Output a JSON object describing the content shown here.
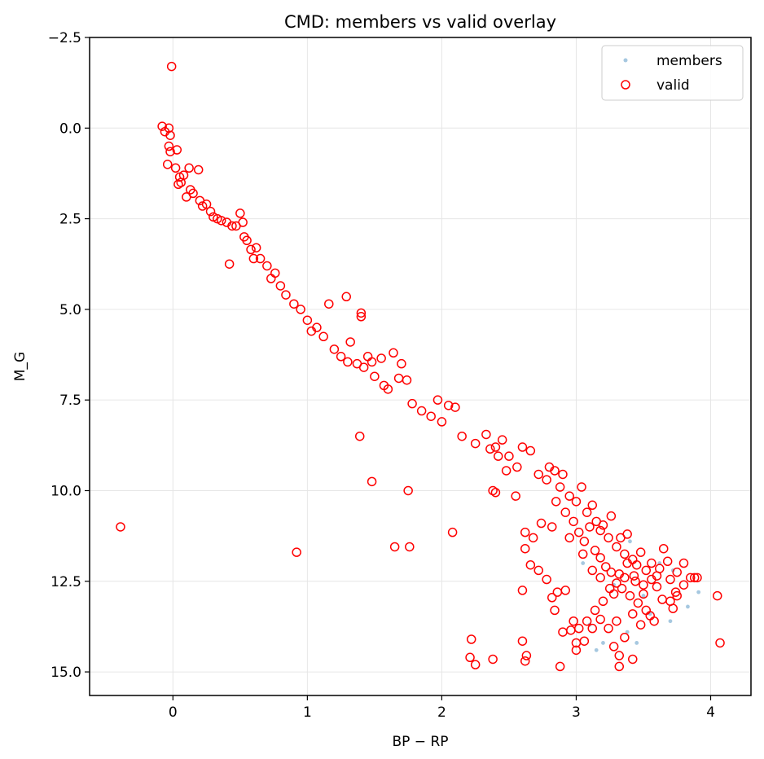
{
  "chart_data": {
    "type": "scatter",
    "title": "CMD: members vs valid overlay",
    "xlabel": "BP − RP",
    "ylabel": "M_G",
    "xlim": [
      -0.62,
      4.3
    ],
    "ylim": [
      15.65,
      -2.5
    ],
    "y_inverted": true,
    "grid": true,
    "legend_position": "upper-right",
    "xticks": [
      0,
      1,
      2,
      3,
      4
    ],
    "xtick_labels": [
      "0",
      "1",
      "2",
      "3",
      "4"
    ],
    "yticks": [
      -2.5,
      0.0,
      2.5,
      5.0,
      7.5,
      10.0,
      12.5,
      15.0
    ],
    "ytick_labels": [
      "−2.5",
      "0.0",
      "2.5",
      "5.0",
      "7.5",
      "10.0",
      "12.5",
      "15.0"
    ],
    "series": [
      {
        "name": "members",
        "color": "#a6c8e0",
        "marker": "small-filled-circle",
        "points": [
          [
            3.1,
            13.7
          ],
          [
            3.15,
            14.4
          ],
          [
            3.2,
            14.2
          ],
          [
            3.38,
            13.9
          ],
          [
            3.45,
            14.2
          ],
          [
            3.55,
            13.4
          ],
          [
            3.7,
            13.6
          ],
          [
            3.83,
            13.2
          ],
          [
            3.91,
            12.8
          ],
          [
            3.62,
            12.0
          ],
          [
            3.5,
            12.9
          ],
          [
            3.28,
            12.6
          ],
          [
            3.4,
            11.4
          ],
          [
            3.05,
            12.0
          ],
          [
            3.72,
            12.2
          ]
        ]
      },
      {
        "name": "valid",
        "color": "#ff0000",
        "marker": "open-circle",
        "points": [
          [
            -0.01,
            -1.7
          ],
          [
            -0.03,
            0.5
          ],
          [
            -0.08,
            -0.05
          ],
          [
            -0.06,
            0.1
          ],
          [
            -0.03,
            0.0
          ],
          [
            -0.02,
            0.2
          ],
          [
            -0.04,
            1.0
          ],
          [
            -0.02,
            0.65
          ],
          [
            0.02,
            1.1
          ],
          [
            0.03,
            0.6
          ],
          [
            0.05,
            1.35
          ],
          [
            0.04,
            1.55
          ],
          [
            0.06,
            1.5
          ],
          [
            0.08,
            1.3
          ],
          [
            0.1,
            1.9
          ],
          [
            0.12,
            1.1
          ],
          [
            0.13,
            1.7
          ],
          [
            0.15,
            1.8
          ],
          [
            0.19,
            1.15
          ],
          [
            0.2,
            2.0
          ],
          [
            0.22,
            2.15
          ],
          [
            0.25,
            2.1
          ],
          [
            0.28,
            2.3
          ],
          [
            0.3,
            2.45
          ],
          [
            0.33,
            2.5
          ],
          [
            0.36,
            2.55
          ],
          [
            0.4,
            2.6
          ],
          [
            0.42,
            3.75
          ],
          [
            0.44,
            2.7
          ],
          [
            0.47,
            2.7
          ],
          [
            0.5,
            2.35
          ],
          [
            0.52,
            2.6
          ],
          [
            0.53,
            3.0
          ],
          [
            0.55,
            3.1
          ],
          [
            0.58,
            3.35
          ],
          [
            0.62,
            3.3
          ],
          [
            0.6,
            3.6
          ],
          [
            0.65,
            3.6
          ],
          [
            0.7,
            3.8
          ],
          [
            0.73,
            4.15
          ],
          [
            0.76,
            4.0
          ],
          [
            0.8,
            4.35
          ],
          [
            0.84,
            4.6
          ],
          [
            0.9,
            4.85
          ],
          [
            0.95,
            5.0
          ],
          [
            1.0,
            5.3
          ],
          [
            1.03,
            5.6
          ],
          [
            1.07,
            5.5
          ],
          [
            1.12,
            5.75
          ],
          [
            1.16,
            4.85
          ],
          [
            1.2,
            6.1
          ],
          [
            1.25,
            6.3
          ],
          [
            1.29,
            4.65
          ],
          [
            1.3,
            6.45
          ],
          [
            1.37,
            6.5
          ],
          [
            1.32,
            5.9
          ],
          [
            1.4,
            5.1
          ],
          [
            1.4,
            5.2
          ],
          [
            1.42,
            6.6
          ],
          [
            1.45,
            6.3
          ],
          [
            1.48,
            6.45
          ],
          [
            1.5,
            6.85
          ],
          [
            1.55,
            6.35
          ],
          [
            1.57,
            7.1
          ],
          [
            1.6,
            7.2
          ],
          [
            1.64,
            6.2
          ],
          [
            1.68,
            6.9
          ],
          [
            1.7,
            6.5
          ],
          [
            1.74,
            6.95
          ],
          [
            1.78,
            7.6
          ],
          [
            1.85,
            7.8
          ],
          [
            1.92,
            7.95
          ],
          [
            1.97,
            7.5
          ],
          [
            2.0,
            8.1
          ],
          [
            2.05,
            7.65
          ],
          [
            2.1,
            7.7
          ],
          [
            2.15,
            8.5
          ],
          [
            2.25,
            8.7
          ],
          [
            2.33,
            8.45
          ],
          [
            2.4,
            8.8
          ],
          [
            2.45,
            8.6
          ],
          [
            2.5,
            9.05
          ],
          [
            2.56,
            9.35
          ],
          [
            2.6,
            8.8
          ],
          [
            2.66,
            8.9
          ],
          [
            2.72,
            9.55
          ],
          [
            2.78,
            9.7
          ],
          [
            2.84,
            9.45
          ],
          [
            2.88,
            9.9
          ],
          [
            2.9,
            9.55
          ],
          [
            2.95,
            10.15
          ],
          [
            3.0,
            10.3
          ],
          [
            3.04,
            9.9
          ],
          [
            3.08,
            10.6
          ],
          [
            3.12,
            10.4
          ],
          [
            3.15,
            10.85
          ],
          [
            3.18,
            11.1
          ],
          [
            3.2,
            10.95
          ],
          [
            3.24,
            11.3
          ],
          [
            3.26,
            10.7
          ],
          [
            3.3,
            11.55
          ],
          [
            3.33,
            11.3
          ],
          [
            3.36,
            11.75
          ],
          [
            3.38,
            11.2
          ],
          [
            3.42,
            11.9
          ],
          [
            3.45,
            12.05
          ],
          [
            3.48,
            11.7
          ],
          [
            3.52,
            12.2
          ],
          [
            3.56,
            12.0
          ],
          [
            3.6,
            12.35
          ],
          [
            3.65,
            11.6
          ],
          [
            3.7,
            12.45
          ],
          [
            3.75,
            12.25
          ],
          [
            3.8,
            12.0
          ],
          [
            3.85,
            12.4
          ],
          [
            3.88,
            12.4
          ],
          [
            2.8,
            9.35
          ],
          [
            2.85,
            10.3
          ],
          [
            2.92,
            10.6
          ],
          [
            2.98,
            10.85
          ],
          [
            3.02,
            11.15
          ],
          [
            3.06,
            11.4
          ],
          [
            3.1,
            11.0
          ],
          [
            3.14,
            11.65
          ],
          [
            3.18,
            11.85
          ],
          [
            3.22,
            12.1
          ],
          [
            3.26,
            12.25
          ],
          [
            3.3,
            12.55
          ],
          [
            3.34,
            12.7
          ],
          [
            3.4,
            12.9
          ],
          [
            3.46,
            13.1
          ],
          [
            3.52,
            13.3
          ],
          [
            3.58,
            13.6
          ],
          [
            3.64,
            13.0
          ],
          [
            3.7,
            13.05
          ],
          [
            3.75,
            12.9
          ],
          [
            3.6,
            12.65
          ],
          [
            3.5,
            12.6
          ],
          [
            3.43,
            12.35
          ],
          [
            3.36,
            12.4
          ],
          [
            3.28,
            12.85
          ],
          [
            3.2,
            13.05
          ],
          [
            3.14,
            13.3
          ],
          [
            3.08,
            13.6
          ],
          [
            3.02,
            13.8
          ],
          [
            2.96,
            13.85
          ],
          [
            2.9,
            13.9
          ],
          [
            2.84,
            13.3
          ],
          [
            2.78,
            12.45
          ],
          [
            2.72,
            12.2
          ],
          [
            2.66,
            12.05
          ],
          [
            2.62,
            11.15
          ],
          [
            2.55,
            10.15
          ],
          [
            2.4,
            10.05
          ],
          [
            2.42,
            9.05
          ],
          [
            2.48,
            9.45
          ],
          [
            2.36,
            8.85
          ],
          [
            2.62,
            11.6
          ],
          [
            2.68,
            11.3
          ],
          [
            2.74,
            10.9
          ],
          [
            2.82,
            11.0
          ],
          [
            2.95,
            11.3
          ],
          [
            3.05,
            11.75
          ],
          [
            3.12,
            12.2
          ],
          [
            3.18,
            12.4
          ],
          [
            3.25,
            12.7
          ],
          [
            3.32,
            12.3
          ],
          [
            3.38,
            12.0
          ],
          [
            3.44,
            12.5
          ],
          [
            3.5,
            12.85
          ],
          [
            3.56,
            12.45
          ],
          [
            3.62,
            12.15
          ],
          [
            3.68,
            11.95
          ],
          [
            3.74,
            12.8
          ],
          [
            3.8,
            12.6
          ],
          [
            3.9,
            12.4
          ],
          [
            4.05,
            12.9
          ],
          [
            4.07,
            14.2
          ],
          [
            3.72,
            13.25
          ],
          [
            3.55,
            13.45
          ],
          [
            3.48,
            13.7
          ],
          [
            3.42,
            13.4
          ],
          [
            3.36,
            14.05
          ],
          [
            3.3,
            13.6
          ],
          [
            3.24,
            13.8
          ],
          [
            3.18,
            13.55
          ],
          [
            3.12,
            13.8
          ],
          [
            3.06,
            14.15
          ],
          [
            3.0,
            14.2
          ],
          [
            2.98,
            13.6
          ],
          [
            2.92,
            12.75
          ],
          [
            2.86,
            12.8
          ],
          [
            2.82,
            12.95
          ],
          [
            2.88,
            14.85
          ],
          [
            3.0,
            14.4
          ],
          [
            3.28,
            14.3
          ],
          [
            3.32,
            14.55
          ],
          [
            3.32,
            14.85
          ],
          [
            3.42,
            14.65
          ],
          [
            2.38,
            14.65
          ],
          [
            2.6,
            14.15
          ],
          [
            2.62,
            14.7
          ],
          [
            2.63,
            14.55
          ],
          [
            2.22,
            14.1
          ],
          [
            2.21,
            14.6
          ],
          [
            2.25,
            14.8
          ],
          [
            2.6,
            12.75
          ],
          [
            2.08,
            11.15
          ],
          [
            1.65,
            11.55
          ],
          [
            1.76,
            11.55
          ],
          [
            1.75,
            10.0
          ],
          [
            1.48,
            9.75
          ],
          [
            1.39,
            8.5
          ],
          [
            0.92,
            11.7
          ],
          [
            -0.39,
            11.0
          ],
          [
            2.38,
            10.0
          ]
        ]
      }
    ]
  }
}
